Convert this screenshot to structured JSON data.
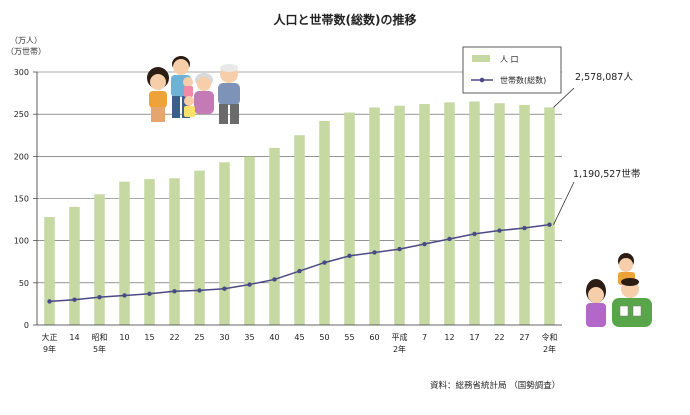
{
  "chart_data": {
    "type": "bar",
    "title": "人口と世帯数(総数)の推移",
    "y_unit_label_1": "（万人）",
    "y_unit_label_2": "（万世帯）",
    "ylim": [
      0,
      300
    ],
    "yticks": [
      0,
      50,
      100,
      150,
      200,
      250,
      300
    ],
    "grid": true,
    "legend_position": "top-right",
    "categories": [
      [
        "大正",
        "9年"
      ],
      [
        "14"
      ],
      [
        "昭和",
        "5年"
      ],
      [
        "10"
      ],
      [
        "15"
      ],
      [
        "22"
      ],
      [
        "25"
      ],
      [
        "30"
      ],
      [
        "35"
      ],
      [
        "40"
      ],
      [
        "45"
      ],
      [
        "50"
      ],
      [
        "55"
      ],
      [
        "60"
      ],
      [
        "平成",
        "2年"
      ],
      [
        "7"
      ],
      [
        "12"
      ],
      [
        "17"
      ],
      [
        "22"
      ],
      [
        "27"
      ],
      [
        "令和",
        "2年"
      ]
    ],
    "series": [
      {
        "name": "人 口",
        "type": "bar",
        "color": "#c6d9a2",
        "values": [
          128,
          140,
          155,
          170,
          173,
          174,
          183,
          193,
          200,
          210,
          225,
          242,
          252,
          258,
          260,
          262,
          264,
          265,
          263,
          261,
          258
        ]
      },
      {
        "name": "世帯数(総数)",
        "type": "line",
        "color": "#4a4a85",
        "values": [
          28,
          30,
          33,
          35,
          37,
          40,
          41,
          43,
          48,
          54,
          64,
          74,
          82,
          86,
          90,
          96,
          102,
          108,
          112,
          115,
          119
        ]
      }
    ],
    "annotations": {
      "population": "2,578,087人",
      "households": "1,190,527世帯"
    },
    "source": "資料：総務省統計局 （国勢調査）"
  },
  "illustrations": [
    "family-group-illustration",
    "family-three-illustration"
  ]
}
